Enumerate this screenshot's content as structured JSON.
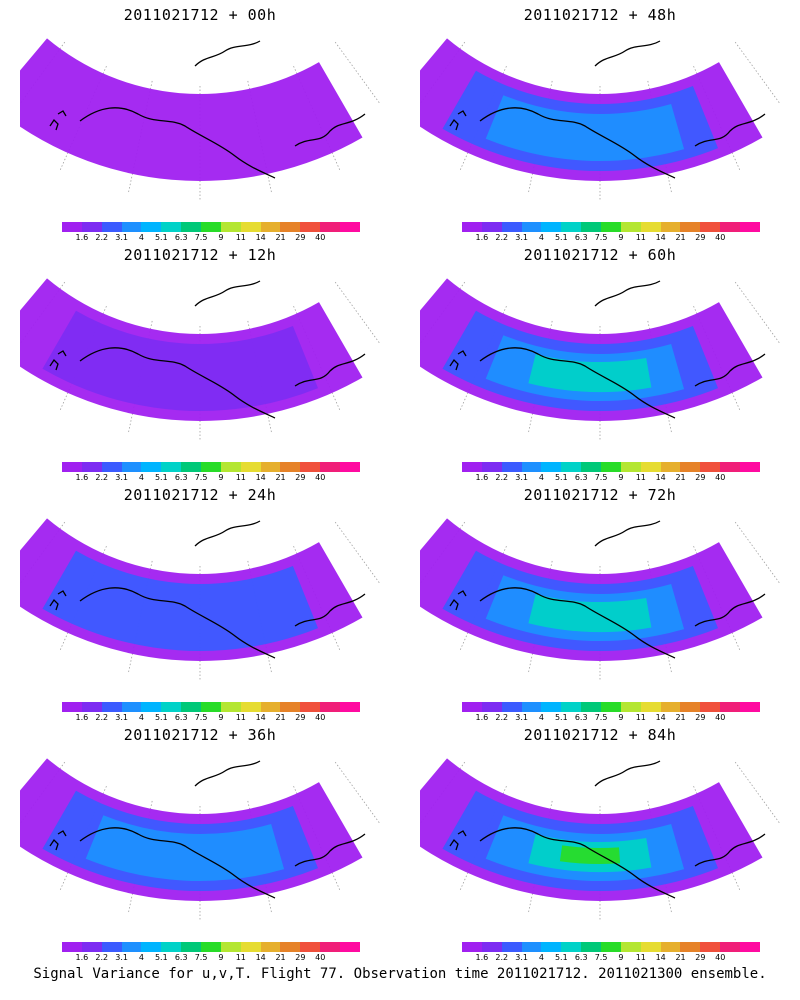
{
  "colorbar": {
    "levels": [
      "1.6",
      "2.2",
      "3.1",
      "4",
      "5.1",
      "6.3",
      "7.5",
      "9",
      "11",
      "14",
      "21",
      "29",
      "40"
    ],
    "colors": [
      "#a020f0",
      "#7d2cf2",
      "#3b5bff",
      "#1e90ff",
      "#00b4ff",
      "#00d2c8",
      "#00c878",
      "#28dc28",
      "#b4e632",
      "#e6dc32",
      "#e6af2d",
      "#e68228",
      "#f0503c",
      "#f01e78",
      "#ff0aa0"
    ]
  },
  "panels": [
    {
      "title": "2011021712 + 00h",
      "intensity": 0
    },
    {
      "title": "2011021712 + 48h",
      "intensity": 4
    },
    {
      "title": "2011021712 + 12h",
      "intensity": 1
    },
    {
      "title": "2011021712 + 60h",
      "intensity": 5
    },
    {
      "title": "2011021712 + 24h",
      "intensity": 2
    },
    {
      "title": "2011021712 + 72h",
      "intensity": 6
    },
    {
      "title": "2011021712 + 36h",
      "intensity": 3
    },
    {
      "title": "2011021712 + 84h",
      "intensity": 7
    }
  ],
  "footer": "Signal Variance for u,v,T. Flight 77. Observation time 2011021712. 2011021300 ensemble."
}
